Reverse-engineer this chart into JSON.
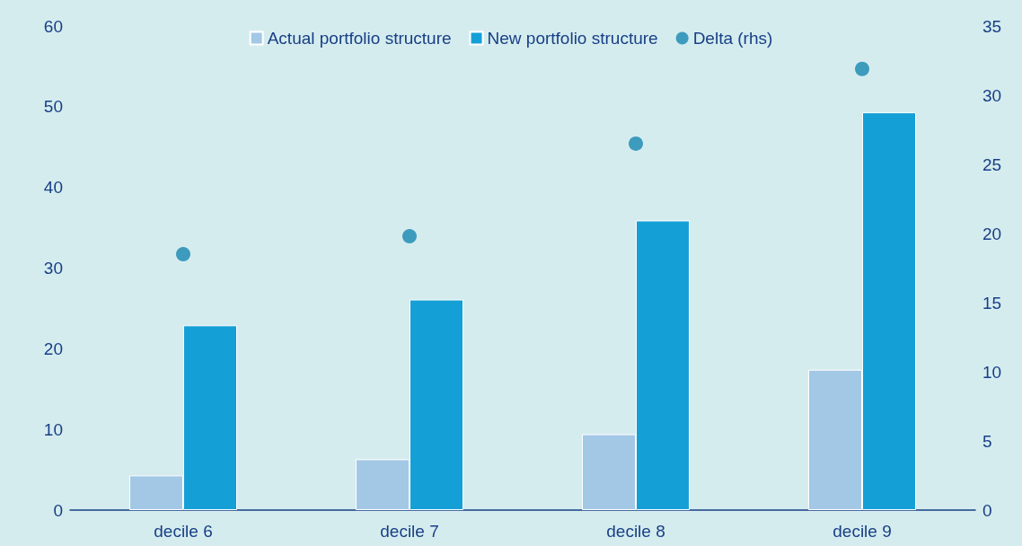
{
  "chart_data": {
    "type": "bar",
    "categories": [
      "decile 6",
      "decile 7",
      "decile 8",
      "decile 9"
    ],
    "series": [
      {
        "name": "Actual portfolio structure",
        "color": "#a3c8e6",
        "values": [
          4.3,
          6.3,
          9.4,
          17.4
        ]
      },
      {
        "name": "New portfolio structure",
        "color": "#14a0d6",
        "values": [
          22.9,
          26.1,
          35.9,
          49.3
        ]
      },
      {
        "name": "Delta (rhs)",
        "type": "scatter",
        "axis": "y2",
        "color": "#1787b0",
        "values": [
          18.5,
          19.8,
          26.5,
          31.9
        ]
      }
    ],
    "ylim": [
      0,
      60
    ],
    "yticks": [
      0,
      10,
      20,
      30,
      40,
      50,
      60
    ],
    "y2lim": [
      0,
      35
    ],
    "y2ticks": [
      0,
      5,
      10,
      15,
      20,
      25,
      30,
      35
    ],
    "grid": false,
    "legend": "top",
    "marker": "circle"
  }
}
